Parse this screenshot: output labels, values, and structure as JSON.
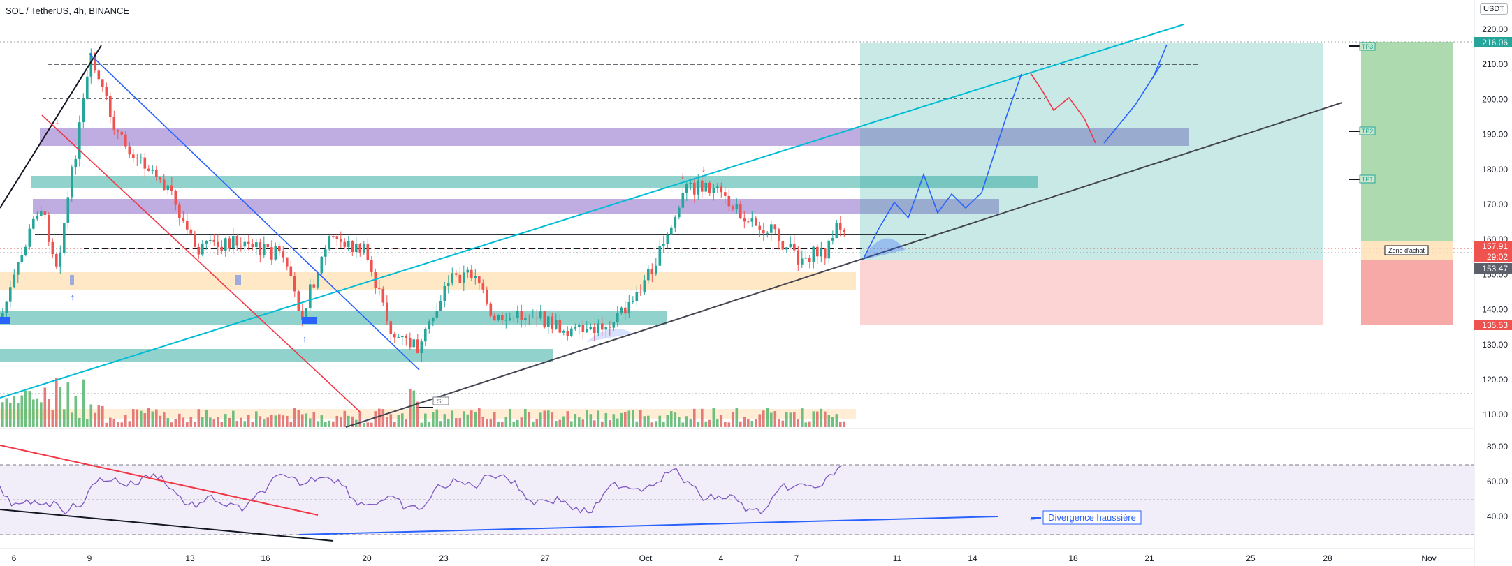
{
  "header": {
    "title": "SOL / TetherUS, 4h, BINANCE",
    "unit": "USDT"
  },
  "colors": {
    "up": "#26a69a",
    "down": "#ef5350",
    "volume_up": "#57b56b",
    "volume_down": "#e06666",
    "rsi": "#7e57c2",
    "accent": "#2962ff"
  },
  "price_axis": {
    "ticks": [
      "220.00",
      "210.00",
      "200.00",
      "190.00",
      "180.00",
      "170.00",
      "160.00",
      "150.00",
      "140.00",
      "130.00",
      "120.00",
      "110.00"
    ],
    "tags": [
      {
        "label": "216.06",
        "color": "#26a69a"
      },
      {
        "label": "157.91",
        "color": "#ef5350"
      },
      {
        "label": "29:02",
        "color": "#ef5350"
      },
      {
        "label": "153.47",
        "color": "#5d606b"
      },
      {
        "label": "135.53",
        "color": "#ef5350"
      }
    ]
  },
  "rsi_axis": {
    "ticks": [
      "80.00",
      "60.00",
      "40.00"
    ]
  },
  "time_axis": {
    "ticks": [
      "6",
      "9",
      "13",
      "16",
      "20",
      "23",
      "27",
      "Oct",
      "4",
      "7",
      "11",
      "14",
      "18",
      "21",
      "25",
      "28",
      "Nov"
    ]
  },
  "annotations": {
    "tp3": "TP3",
    "tp2": "TP2",
    "tp1": "TP1",
    "buy_zone": "Zone d'achat",
    "sl": "SL",
    "divergence": "Divergence haussière"
  }
}
